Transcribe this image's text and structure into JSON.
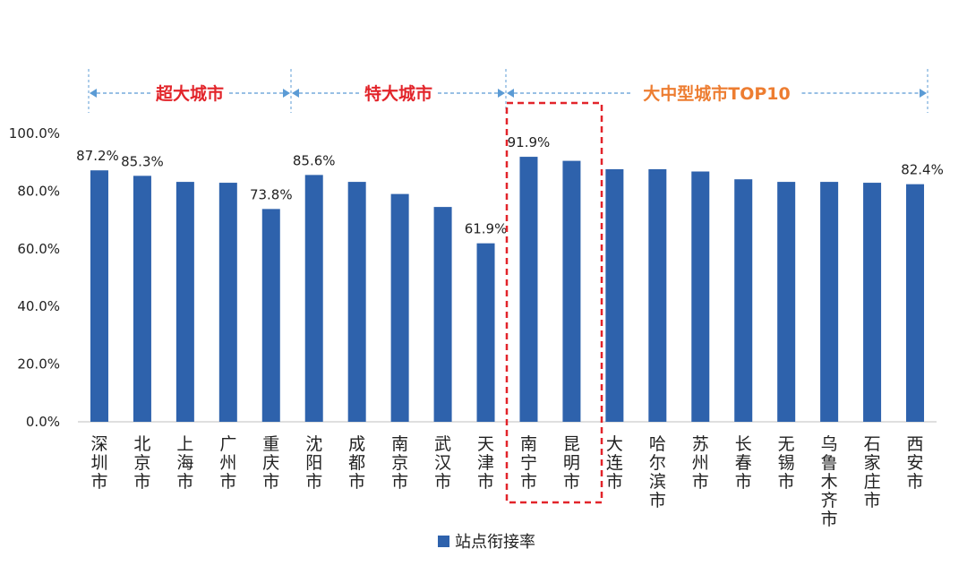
{
  "chart_data": {
    "type": "bar",
    "categories": [
      "深圳市",
      "北京市",
      "上海市",
      "广州市",
      "重庆市",
      "沈阳市",
      "成都市",
      "南京市",
      "武汉市",
      "天津市",
      "南宁市",
      "昆明市",
      "大连市",
      "哈尔滨市",
      "苏州市",
      "长春市",
      "无锡市",
      "乌鲁木齐市",
      "石家庄市",
      "西安市"
    ],
    "series": [
      {
        "name": "站点衔接率",
        "values": [
          87.2,
          85.3,
          83.2,
          82.9,
          73.8,
          85.6,
          83.2,
          79.0,
          74.5,
          61.9,
          91.9,
          90.5,
          87.6,
          87.6,
          86.8,
          84.1,
          83.2,
          83.2,
          82.9,
          82.4
        ]
      }
    ],
    "data_labels": [
      {
        "index": 0,
        "text": "87.2%"
      },
      {
        "index": 1,
        "text": "85.3%"
      },
      {
        "index": 4,
        "text": "73.8%"
      },
      {
        "index": 5,
        "text": "85.6%"
      },
      {
        "index": 9,
        "text": "61.9%"
      },
      {
        "index": 10,
        "text": "91.9%"
      },
      {
        "index": 19,
        "text": "82.4%"
      }
    ],
    "y_ticks": [
      "0.0%",
      "20.0%",
      "40.0%",
      "60.0%",
      "80.0%",
      "100.0%"
    ],
    "ylim": [
      0,
      100
    ],
    "grid": false,
    "legend_position": "bottom",
    "groups": [
      {
        "label": "超大城市",
        "start": 0,
        "end": 5,
        "color": "#e2242a"
      },
      {
        "label": "特大城市",
        "start": 5,
        "end": 10,
        "color": "#e2242a"
      },
      {
        "label": "大中型城市TOP10",
        "start": 10,
        "end": 20,
        "color": "#ed7d31"
      }
    ],
    "highlight": {
      "start": 10,
      "end": 12,
      "color": "#e2242a"
    },
    "bar_color": "#2e62ac"
  }
}
